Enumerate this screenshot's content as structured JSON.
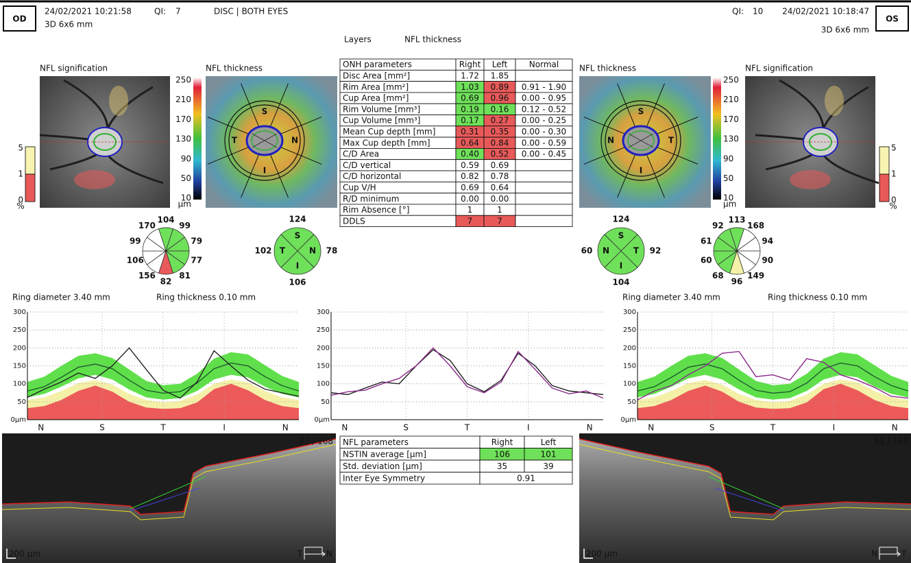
{
  "header": {
    "left": {
      "eye": "OD",
      "datetime": "24/02/2021 10:21:58",
      "qi_label": "QI:",
      "qi": 7,
      "scan": "3D  6x6 mm"
    },
    "protocol": "DISC | BOTH EYES",
    "right": {
      "eye": "OS",
      "datetime": "24/02/2021 10:18:47",
      "qi_label": "QI:",
      "qi": 10,
      "scan": "3D  6x6 mm"
    }
  },
  "tabs": [
    "Layers",
    "NFL thickness"
  ],
  "eyes": [
    {
      "signification_title": "NFL signification",
      "thickness_title": "NFL thickness",
      "significance_legend": {
        "ticks": [
          "5",
          "1",
          "0"
        ],
        "unit": "%",
        "colors": [
          "#f7f3b0",
          "#e85a5a"
        ]
      },
      "thickness_scale": {
        "ticks": [
          250,
          210,
          170,
          130,
          90,
          50,
          10
        ],
        "unit": "µm"
      },
      "map_labels": [
        "S",
        "N",
        "I",
        "T"
      ],
      "clock_sectors": [
        {
          "value": 104,
          "color": "#6fe05a"
        },
        {
          "value": 99,
          "color": "#6fe05a"
        },
        {
          "value": 79,
          "color": "#6fe05a"
        },
        {
          "value": 77,
          "color": "#6fe05a"
        },
        {
          "value": 81,
          "color": "#6fe05a"
        },
        {
          "value": 82,
          "color": "#e85a5a"
        },
        {
          "value": 156,
          "color": "#ffffff"
        },
        {
          "value": 106,
          "color": "#ffffff"
        },
        {
          "value": 99,
          "color": "#ffffff"
        },
        {
          "value": 170,
          "color": "#ffffff"
        }
      ],
      "quadrants": [
        {
          "label": "S",
          "value": 124,
          "color": "#6fe05a"
        },
        {
          "label": "N",
          "value": 78,
          "color": "#6fe05a"
        },
        {
          "label": "I",
          "value": 106,
          "color": "#6fe05a"
        },
        {
          "label": "T",
          "value": 102,
          "color": "#6fe05a"
        }
      ],
      "ring_diameter": "Ring diameter 3.40 mm",
      "ring_thickness": "Ring thickness 0.10 mm",
      "tsnit": {
        "type": "line",
        "ylim": [
          0,
          300
        ],
        "yticks": [
          {
            "value": 0,
            "label": "0µm"
          },
          50,
          100,
          150,
          200,
          250,
          300
        ],
        "xlabels": [
          "N",
          "S",
          "T",
          "I",
          "N"
        ],
        "grid": true,
        "bands": [
          {
            "color": "#5fe04a",
            "low": [
              62,
              72,
              92,
              115,
              125,
              112,
              84,
              62,
              56,
              60,
              80,
              112,
              125,
              118,
              92,
              72,
              62
            ],
            "high": [
              105,
              120,
              150,
              178,
              185,
              172,
              140,
              108,
              96,
              100,
              128,
              170,
              188,
              182,
              152,
              122,
              105
            ]
          },
          {
            "color": "#f4f0a8",
            "high": [
              55,
              62,
              80,
              102,
              110,
              98,
              72,
              55,
              48,
              52,
              70,
              100,
              112,
              104,
              80,
              62,
              55
            ]
          },
          {
            "color": "#ec5a5a",
            "high": [
              32,
              38,
              55,
              80,
              95,
              78,
              50,
              34,
              30,
              32,
              48,
              85,
              100,
              82,
              55,
              38,
              32
            ]
          }
        ],
        "lines": [
          {
            "color": "#1d5c2c",
            "values": [
              80,
              92,
              118,
              146,
              155,
              142,
              110,
              82,
              74,
              78,
              102,
              142,
              158,
              150,
              120,
              95,
              80
            ]
          },
          {
            "color": "#222222",
            "values": [
              62,
              85,
              105,
              130,
              115,
              150,
              200,
              140,
              82,
              60,
              105,
              192,
              150,
              110,
              85,
              75,
              65
            ]
          }
        ]
      },
      "bscan": {
        "slice": "83 / 168",
        "scale": "200 µm",
        "from": "T",
        "to": "N"
      }
    },
    {
      "signification_title": "NFL signification",
      "thickness_title": "NFL thickness",
      "significance_legend": {
        "ticks": [
          "5",
          "1",
          "0"
        ],
        "unit": "%",
        "colors": [
          "#f7f3b0",
          "#e85a5a"
        ]
      },
      "thickness_scale": {
        "ticks": [
          250,
          210,
          170,
          130,
          90,
          50,
          10
        ],
        "unit": "µm"
      },
      "map_labels": [
        "S",
        "T",
        "I",
        "N"
      ],
      "clock_sectors": [
        {
          "value": 113,
          "color": "#6fe05a"
        },
        {
          "value": 168,
          "color": "#ffffff"
        },
        {
          "value": 94,
          "color": "#ffffff"
        },
        {
          "value": 90,
          "color": "#ffffff"
        },
        {
          "value": 149,
          "color": "#ffffff"
        },
        {
          "value": 96,
          "color": "#f4f0a8"
        },
        {
          "value": 68,
          "color": "#6fe05a"
        },
        {
          "value": 60,
          "color": "#6fe05a"
        },
        {
          "value": 61,
          "color": "#6fe05a"
        },
        {
          "value": 92,
          "color": "#6fe05a"
        }
      ],
      "quadrants": [
        {
          "label": "S",
          "value": 124,
          "color": "#6fe05a"
        },
        {
          "label": "T",
          "value": 92,
          "color": "#6fe05a"
        },
        {
          "label": "I",
          "value": 104,
          "color": "#6fe05a"
        },
        {
          "label": "N",
          "value": 60,
          "color": "#6fe05a"
        }
      ],
      "ring_diameter": "Ring diameter 3.40 mm",
      "ring_thickness": "Ring thickness 0.10 mm",
      "tsnit": {
        "type": "line",
        "ylim": [
          0,
          300
        ],
        "yticks": [
          {
            "value": 0,
            "label": "0µm"
          },
          50,
          100,
          150,
          200,
          250,
          300
        ],
        "xlabels": [
          "N",
          "S",
          "T",
          "I",
          "N"
        ],
        "grid": true,
        "bands": [
          {
            "color": "#5fe04a",
            "low": [
              62,
              72,
              92,
              115,
              125,
              112,
              84,
              62,
              56,
              60,
              80,
              112,
              125,
              118,
              92,
              72,
              62
            ],
            "high": [
              105,
              120,
              150,
              178,
              185,
              172,
              140,
              108,
              96,
              100,
              128,
              170,
              188,
              182,
              152,
              122,
              105
            ]
          },
          {
            "color": "#f4f0a8",
            "high": [
              55,
              62,
              80,
              102,
              110,
              98,
              72,
              55,
              48,
              52,
              70,
              100,
              112,
              104,
              80,
              62,
              55
            ]
          },
          {
            "color": "#ec5a5a",
            "high": [
              32,
              38,
              55,
              80,
              95,
              78,
              50,
              34,
              30,
              32,
              48,
              85,
              100,
              82,
              55,
              38,
              32
            ]
          }
        ],
        "lines": [
          {
            "color": "#1d5c2c",
            "values": [
              80,
              92,
              118,
              146,
              155,
              142,
              110,
              82,
              74,
              78,
              102,
              142,
              158,
              150,
              120,
              95,
              80
            ]
          },
          {
            "color": "#8a2a8a",
            "values": [
              55,
              80,
              95,
              125,
              150,
              185,
              190,
              120,
              125,
              110,
              170,
              160,
              125,
              110,
              90,
              65,
              60
            ]
          }
        ]
      },
      "bscan": {
        "slice": "91 / 168",
        "scale": "200 µm",
        "from": "N",
        "to": "T"
      }
    }
  ],
  "comparison": {
    "type": "line",
    "ylim": [
      0,
      300
    ],
    "yticks": [
      {
        "value": 0,
        "label": "0µm"
      },
      50,
      100,
      150,
      200,
      250,
      300
    ],
    "xlabels": [
      "N",
      "S",
      "T",
      "I",
      "N"
    ],
    "grid": true,
    "lines": [
      {
        "color": "#222222",
        "values": [
          75,
          70,
          88,
          105,
          100,
          150,
          195,
          165,
          100,
          78,
          110,
          185,
          150,
          95,
          80,
          75,
          70
        ]
      },
      {
        "color": "#8a2a8a",
        "values": [
          68,
          78,
          82,
          100,
          115,
          150,
          200,
          150,
          92,
          75,
          105,
          190,
          140,
          88,
          72,
          80,
          60
        ]
      }
    ]
  },
  "onh_table": {
    "header": [
      "ONH parameters",
      "Right",
      "Left",
      "Normal"
    ],
    "rows": [
      {
        "cells": [
          "Disc Area [mm²]",
          "1.72",
          "1.85"
        ]
      },
      {
        "cells": [
          "Rim Area [mm²]",
          "1.03",
          "0.89",
          "0.91 - 1.90"
        ],
        "fill": {
          "1": "#6fe05a",
          "2": "#e85a5a"
        }
      },
      {
        "cells": [
          "Cup Area [mm²]",
          "0.69",
          "0.96",
          "0.00 - 0.95"
        ],
        "fill": {
          "1": "#6fe05a",
          "2": "#e85a5a"
        }
      },
      {
        "cells": [
          "Rim Volume [mm³]",
          "0.19",
          "0.16",
          "0.12 - 0.52"
        ],
        "fill": {
          "1": "#6fe05a",
          "2": "#6fe05a"
        }
      },
      {
        "cells": [
          "Cup Volume [mm³]",
          "0.17",
          "0.27",
          "0.00 - 0.25"
        ],
        "fill": {
          "1": "#6fe05a",
          "2": "#e85a5a"
        }
      },
      {
        "cells": [
          "Mean Cup depth [mm]",
          "0.31",
          "0.35",
          "0.00 - 0.30"
        ],
        "fill": {
          "1": "#e85a5a",
          "2": "#e85a5a"
        }
      },
      {
        "cells": [
          "Max Cup depth [mm]",
          "0.64",
          "0.84",
          "0.00 - 0.59"
        ],
        "fill": {
          "1": "#e85a5a",
          "2": "#e85a5a"
        }
      },
      {
        "cells": [
          "C/D Area",
          "0.40",
          "0.52",
          "0.00 - 0.45"
        ],
        "fill": {
          "1": "#6fe05a",
          "2": "#e85a5a"
        }
      },
      {
        "cells": [
          "C/D vertical",
          "0.59",
          "0.69"
        ]
      },
      {
        "cells": [
          "C/D horizontal",
          "0.82",
          "0.78"
        ]
      },
      {
        "cells": [
          "Cup V/H",
          "0.69",
          "0.64"
        ]
      },
      {
        "cells": [
          "R/D minimum",
          "0.00",
          "0.00"
        ]
      },
      {
        "cells": [
          "Rim Absence [°]",
          "1",
          "1"
        ]
      },
      {
        "cells": [
          "DDLS",
          "7",
          "7"
        ],
        "fill": {
          "1": "#e85a5a",
          "2": "#e85a5a"
        }
      }
    ]
  },
  "nfl_table": {
    "header": [
      "NFL parameters",
      "Right",
      "Left"
    ],
    "rows": [
      {
        "cells": [
          "NSTIN average [µm]",
          "106",
          "101"
        ],
        "fill": {
          "1": "#6fe05a",
          "2": "#6fe05a"
        }
      },
      {
        "cells": [
          "Std. deviation [µm]",
          "35",
          "39"
        ]
      },
      {
        "cells": [
          "Inter Eye Symmetry",
          "0.91"
        ]
      }
    ]
  }
}
